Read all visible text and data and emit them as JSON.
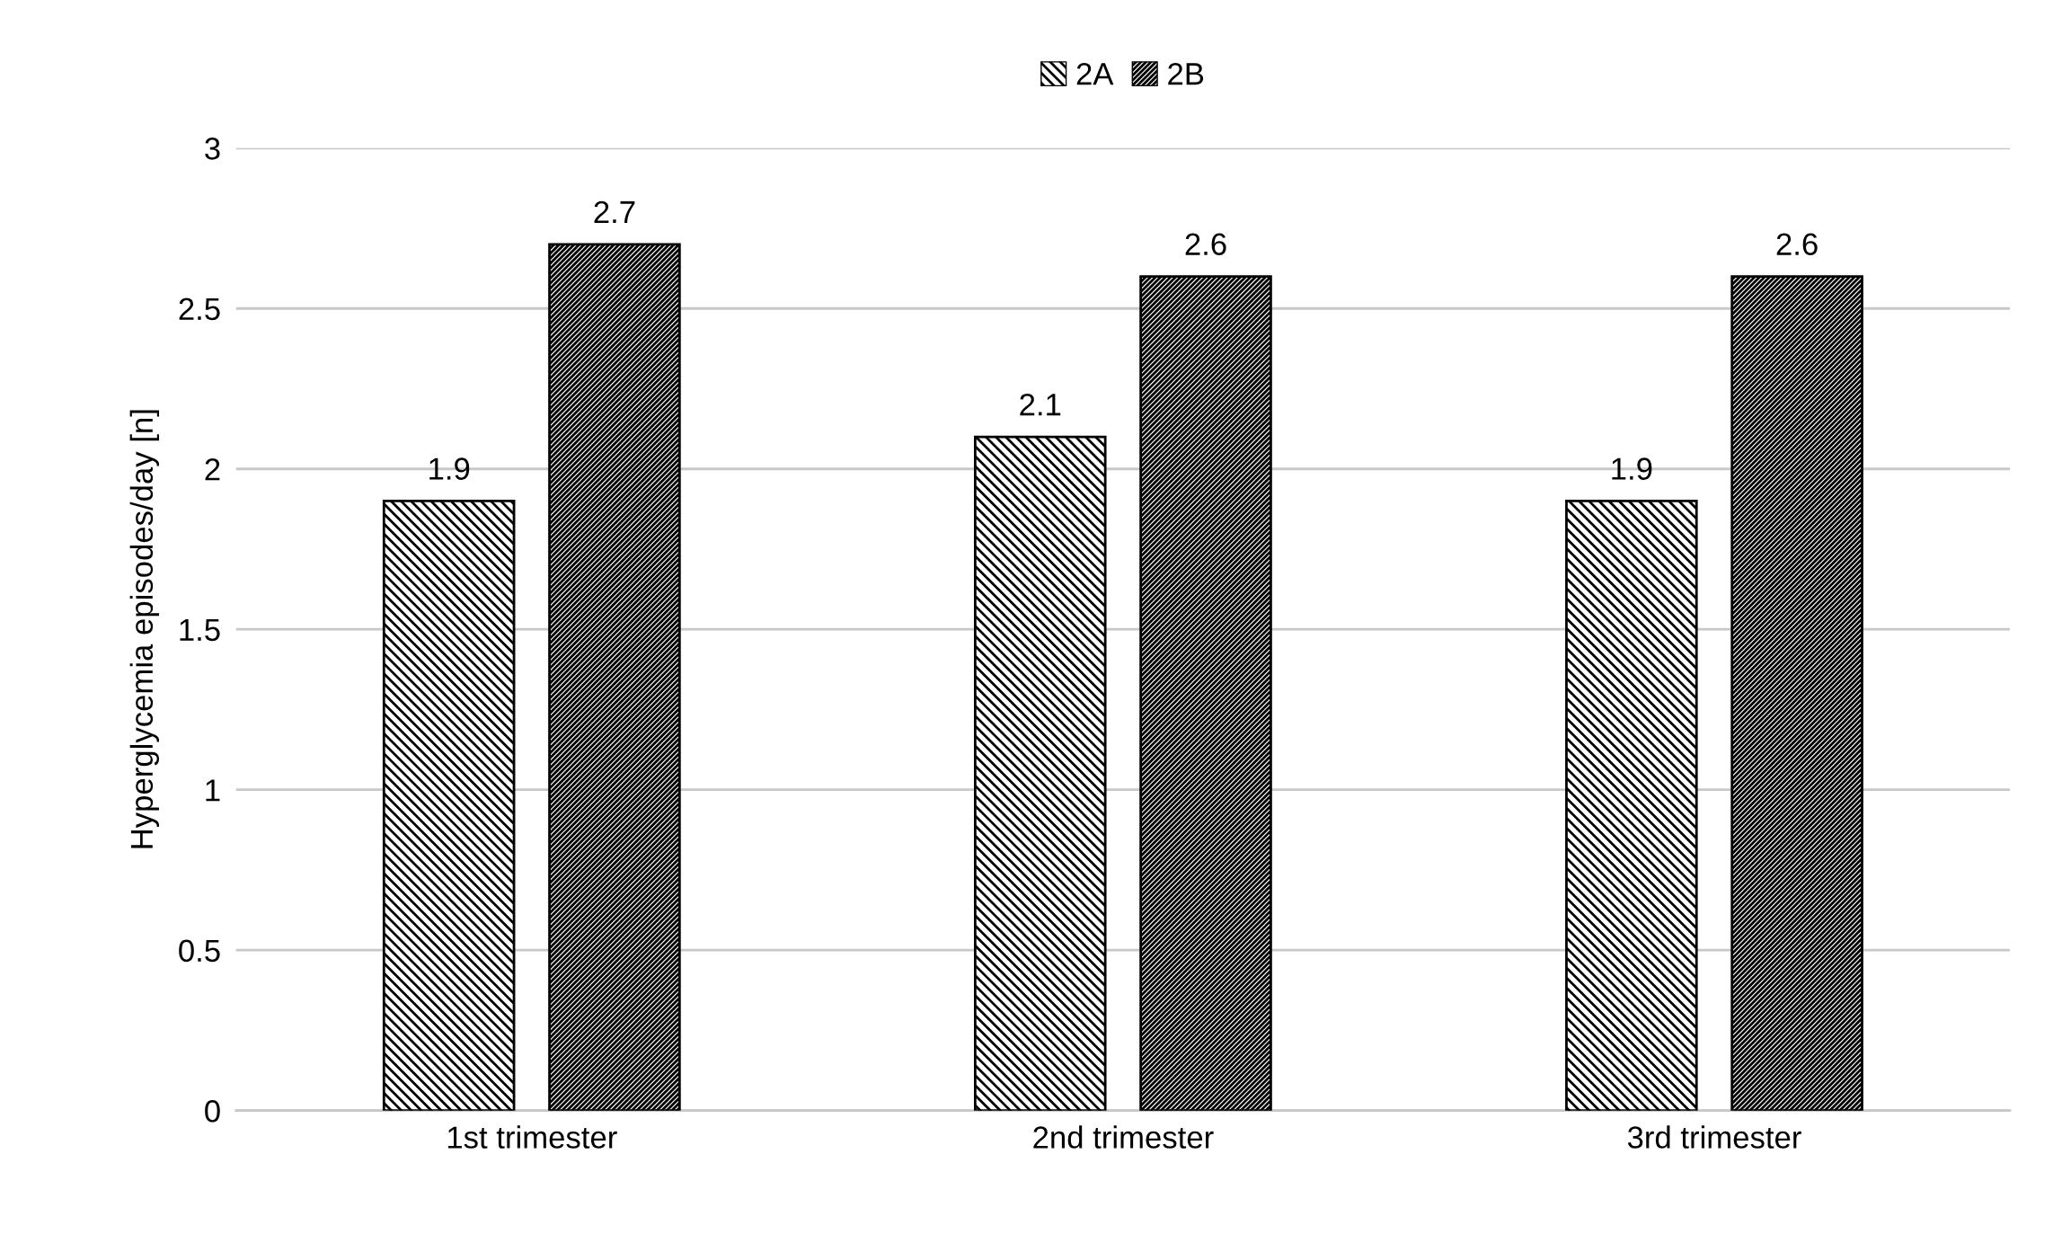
{
  "chart_data": {
    "type": "bar",
    "ylabel": "Hyperglycemia episodes/day [n]",
    "categories": [
      "1st trimester",
      "2nd trimester",
      "3rd trimester"
    ],
    "series": [
      {
        "name": "2A",
        "color": "#000000",
        "values": [
          1.9,
          2.1,
          1.9
        ]
      },
      {
        "name": "2B",
        "color": "#000000",
        "values": [
          2.7,
          2.6,
          2.6
        ]
      }
    ],
    "ylim": [
      0,
      3
    ],
    "yticks": [
      0,
      0.5,
      1,
      1.5,
      2,
      2.5,
      3
    ],
    "grid": "y",
    "legend": "top",
    "data_labels": true
  }
}
